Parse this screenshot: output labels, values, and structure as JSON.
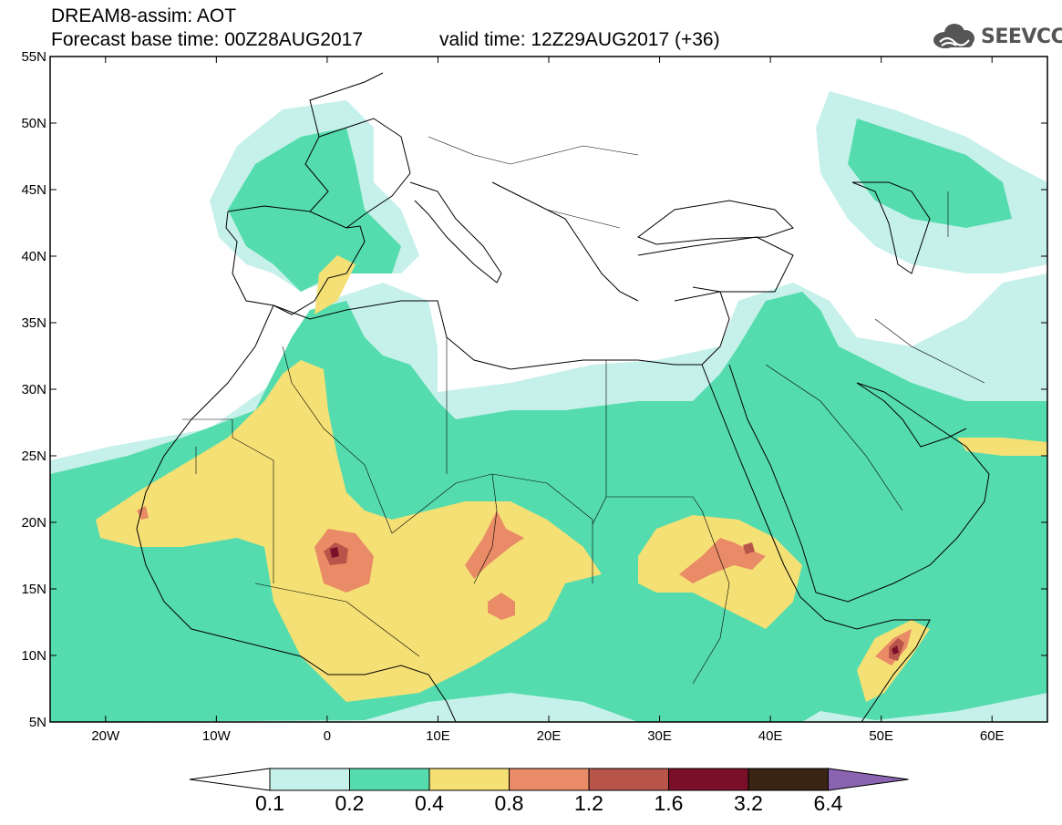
{
  "header": {
    "line1": "DREAM8-assim: AOT",
    "line2": "Forecast base time: 00Z28AUG2017",
    "valid": "valid time: 12Z29AUG2017 (+36)",
    "logo_text": "SEEVCCC",
    "logo_icon": "cloud-icon"
  },
  "map": {
    "lon_range": [
      -25,
      65
    ],
    "lat_range": [
      5,
      55
    ],
    "y_ticks": [
      "55N",
      "50N",
      "45N",
      "40N",
      "35N",
      "30N",
      "25N",
      "20N",
      "15N",
      "10N",
      "5N"
    ],
    "x_ticks": [
      "20W",
      "10W",
      "0",
      "10E",
      "20E",
      "30E",
      "40E",
      "50E",
      "60E"
    ]
  },
  "colorbar": {
    "labels": [
      "0.1",
      "0.2",
      "0.4",
      "0.8",
      "1.2",
      "1.6",
      "3.2",
      "6.4"
    ],
    "colors": [
      "#c6f0ea",
      "#55dcae",
      "#f5e075",
      "#e98b66",
      "#b8554a",
      "#7a0f2a",
      "#3a2413"
    ],
    "overflow_color": "#8a64b0",
    "underflow_color": "#ffffff"
  },
  "fields": {
    "aot_colors": {
      "c01": "#c6f0ea",
      "c02": "#55dcae",
      "c04": "#f5e075",
      "c08": "#e98b66",
      "c12": "#b8554a",
      "c16": "#7a0f2a"
    }
  }
}
